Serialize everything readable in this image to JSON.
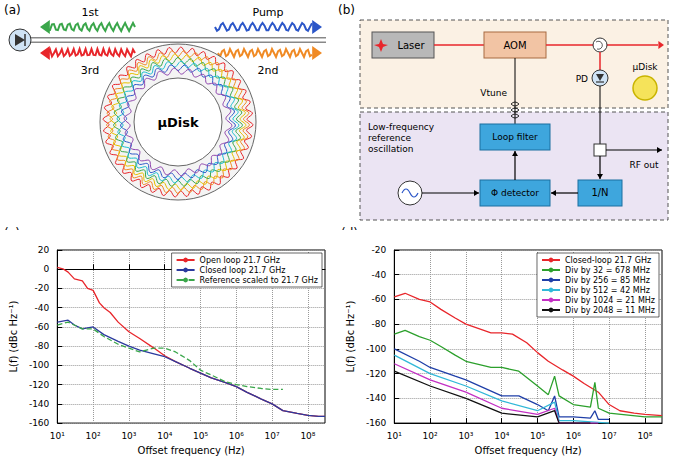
{
  "diagrams": {
    "a": {
      "panel": "(a)",
      "disk": "μDisk",
      "waves": {
        "first": "1st",
        "third": "3rd",
        "pump": "Pump",
        "second": "2nd"
      }
    },
    "b": {
      "panel": "(b)",
      "laser": "Laser",
      "aom": "AOM",
      "vtune": "Vtune",
      "disk": "μDisk",
      "pd": "PD",
      "loop_filter": "Loop filter",
      "reference": "Low-frequency reference oscillation",
      "phase_detector": "Φ detector",
      "divider": "1/N",
      "rf_out": "RF out"
    }
  },
  "chart_data": [
    {
      "panel": "(c)",
      "type": "line",
      "log": "x",
      "grid": true,
      "legend": "upper right",
      "x_label": "Offset frequency (Hz)",
      "y_label": "L(f) (dBc Hz⁻¹)",
      "xlim": [
        10,
        300000000
      ],
      "xticks": [
        {
          "value": 10,
          "label": "10¹"
        },
        {
          "value": 100,
          "label": "10²"
        },
        {
          "value": 1000,
          "label": "10³"
        },
        {
          "value": 10000,
          "label": "10⁴"
        },
        {
          "value": 100000,
          "label": "10⁵"
        },
        {
          "value": 1000000,
          "label": "10⁶"
        },
        {
          "value": 10000000,
          "label": "10⁷"
        },
        {
          "value": 100000000,
          "label": "10⁸"
        }
      ],
      "ylim": [
        -160,
        20
      ],
      "yticks": [
        -160,
        -140,
        -120,
        -100,
        -80,
        -60,
        -40,
        -20,
        0,
        20
      ],
      "series": [
        {
          "name": "Open loop 21.7 GHz",
          "color": "#e8262b",
          "line_style": "solid",
          "x": [
            10,
            15,
            20,
            30,
            50,
            70,
            100,
            150,
            200,
            300,
            500,
            1000,
            2000,
            5000,
            10000,
            20000,
            50000,
            100000,
            200000,
            500000,
            1000000,
            2000000,
            5000000,
            10000000,
            20000000,
            50000000,
            100000000,
            200000000,
            300000000
          ],
          "values": [
            2,
            0,
            -3,
            -10,
            -12,
            -20,
            -22,
            -35,
            -40,
            -45,
            -55,
            -65,
            -72,
            -82,
            -90,
            -96,
            -103,
            -108,
            -113,
            -118,
            -122,
            -128,
            -135,
            -140,
            -147,
            -150,
            -152,
            -153,
            -153
          ]
        },
        {
          "name": "Closed loop 21.7 GHz",
          "color": "#2b3a9e",
          "line_style": "solid",
          "x": [
            10,
            20,
            30,
            50,
            100,
            200,
            500,
            1000,
            2000,
            5000,
            10000,
            20000,
            50000,
            100000,
            200000,
            500000,
            1000000,
            2000000,
            5000000,
            10000000,
            20000000,
            50000000,
            100000000,
            200000000,
            300000000
          ],
          "values": [
            -55,
            -53,
            -58,
            -62,
            -60,
            -68,
            -75,
            -80,
            -84,
            -88,
            -91,
            -96,
            -103,
            -108,
            -113,
            -118,
            -122,
            -128,
            -135,
            -140,
            -147,
            -150,
            -152,
            -153,
            -153
          ]
        },
        {
          "name": "Reference scaled to 21.7 GHz",
          "color": "#3aa64a",
          "line_style": "dashed",
          "x": [
            10,
            20,
            50,
            100,
            200,
            500,
            1000,
            2000,
            5000,
            10000,
            20000,
            50000,
            100000,
            200000,
            500000,
            1000000,
            2000000,
            5000000,
            10000000,
            20000000
          ],
          "values": [
            -58,
            -55,
            -62,
            -62,
            -70,
            -78,
            -82,
            -86,
            -82,
            -82,
            -86,
            -95,
            -105,
            -110,
            -117,
            -120,
            -122,
            -124,
            -125,
            -125
          ]
        }
      ]
    },
    {
      "panel": "(d)",
      "type": "line",
      "log": "x",
      "grid": true,
      "legend": "upper right",
      "x_label": "Offset frequency (Hz)",
      "y_label": "L(f) (dBc Hz⁻¹)",
      "xlim": [
        10,
        300000000
      ],
      "xticks": [
        {
          "value": 10,
          "label": "10¹"
        },
        {
          "value": 100,
          "label": "10²"
        },
        {
          "value": 1000,
          "label": "10³"
        },
        {
          "value": 10000,
          "label": "10⁴"
        },
        {
          "value": 100000,
          "label": "10⁵"
        },
        {
          "value": 1000000,
          "label": "10⁶"
        },
        {
          "value": 10000000,
          "label": "10⁷"
        },
        {
          "value": 100000000,
          "label": "10⁸"
        }
      ],
      "ylim": [
        -160,
        -20
      ],
      "yticks": [
        -160,
        -140,
        -120,
        -100,
        -80,
        -60,
        -40,
        -20
      ],
      "series": [
        {
          "name": "Closed-loop 21.7 GHz",
          "color": "#e8262b",
          "line_style": "solid",
          "x": [
            10,
            20,
            50,
            100,
            200,
            500,
            1000,
            2000,
            5000,
            10000,
            20000,
            50000,
            100000,
            200000,
            500000,
            1000000,
            2000000,
            5000000,
            10000000,
            20000000,
            50000000,
            100000000,
            300000000
          ],
          "values": [
            -58,
            -55,
            -60,
            -62,
            -68,
            -75,
            -80,
            -83,
            -87,
            -87,
            -88,
            -95,
            -103,
            -110,
            -117,
            -122,
            -128,
            -135,
            -145,
            -150,
            -152,
            -153,
            -154
          ]
        },
        {
          "name": "Div by 32 = 678 MHz",
          "color": "#2ca02c",
          "line_style": "solid",
          "x": [
            10,
            20,
            50,
            100,
            200,
            500,
            1000,
            5000,
            10000,
            30000,
            100000,
            200000,
            300000,
            400000,
            1000000,
            3000000,
            4000000,
            5000000,
            10000000,
            100000000,
            300000000
          ],
          "values": [
            -88,
            -85,
            -90,
            -93,
            -98,
            -105,
            -110,
            -115,
            -115,
            -118,
            -130,
            -137,
            -122,
            -138,
            -145,
            -147,
            -127,
            -148,
            -152,
            -155,
            -155
          ]
        },
        {
          "name": "Div by 256 = 85 MHz",
          "color": "#1f3fa8",
          "line_style": "solid",
          "x": [
            10,
            50,
            100,
            500,
            1000,
            10000,
            30000,
            100000,
            200000,
            300000,
            400000,
            1000000,
            3000000,
            4000000,
            5000000,
            10000000
          ],
          "values": [
            -100,
            -110,
            -115,
            -122,
            -125,
            -138,
            -138,
            -145,
            -150,
            -138,
            -155,
            -155,
            -156,
            -150,
            -157,
            -157
          ]
        },
        {
          "name": "Div by 512 = 42 MHz",
          "color": "#31b8d8",
          "line_style": "solid",
          "x": [
            10,
            100,
            1000,
            10000,
            100000,
            300000,
            400000,
            1000000,
            10000000
          ],
          "values": [
            -105,
            -120,
            -130,
            -142,
            -150,
            -143,
            -158,
            -158,
            -160
          ]
        },
        {
          "name": "Div by 1024 = 21 MHz",
          "color": "#c42fc4",
          "line_style": "solid",
          "x": [
            10,
            100,
            1000,
            10000,
            100000,
            300000,
            400000,
            1000000,
            5000000
          ],
          "values": [
            -112,
            -125,
            -135,
            -148,
            -153,
            -148,
            -160,
            -160,
            -160
          ]
        },
        {
          "name": "Div by 2048 = 11 MHz",
          "color": "#111111",
          "line_style": "solid",
          "x": [
            10,
            100,
            1000,
            10000,
            100000,
            300000,
            400000,
            1000000,
            3000000
          ],
          "values": [
            -118,
            -130,
            -140,
            -152,
            -155,
            -150,
            -160,
            -160,
            -160
          ]
        }
      ]
    }
  ]
}
